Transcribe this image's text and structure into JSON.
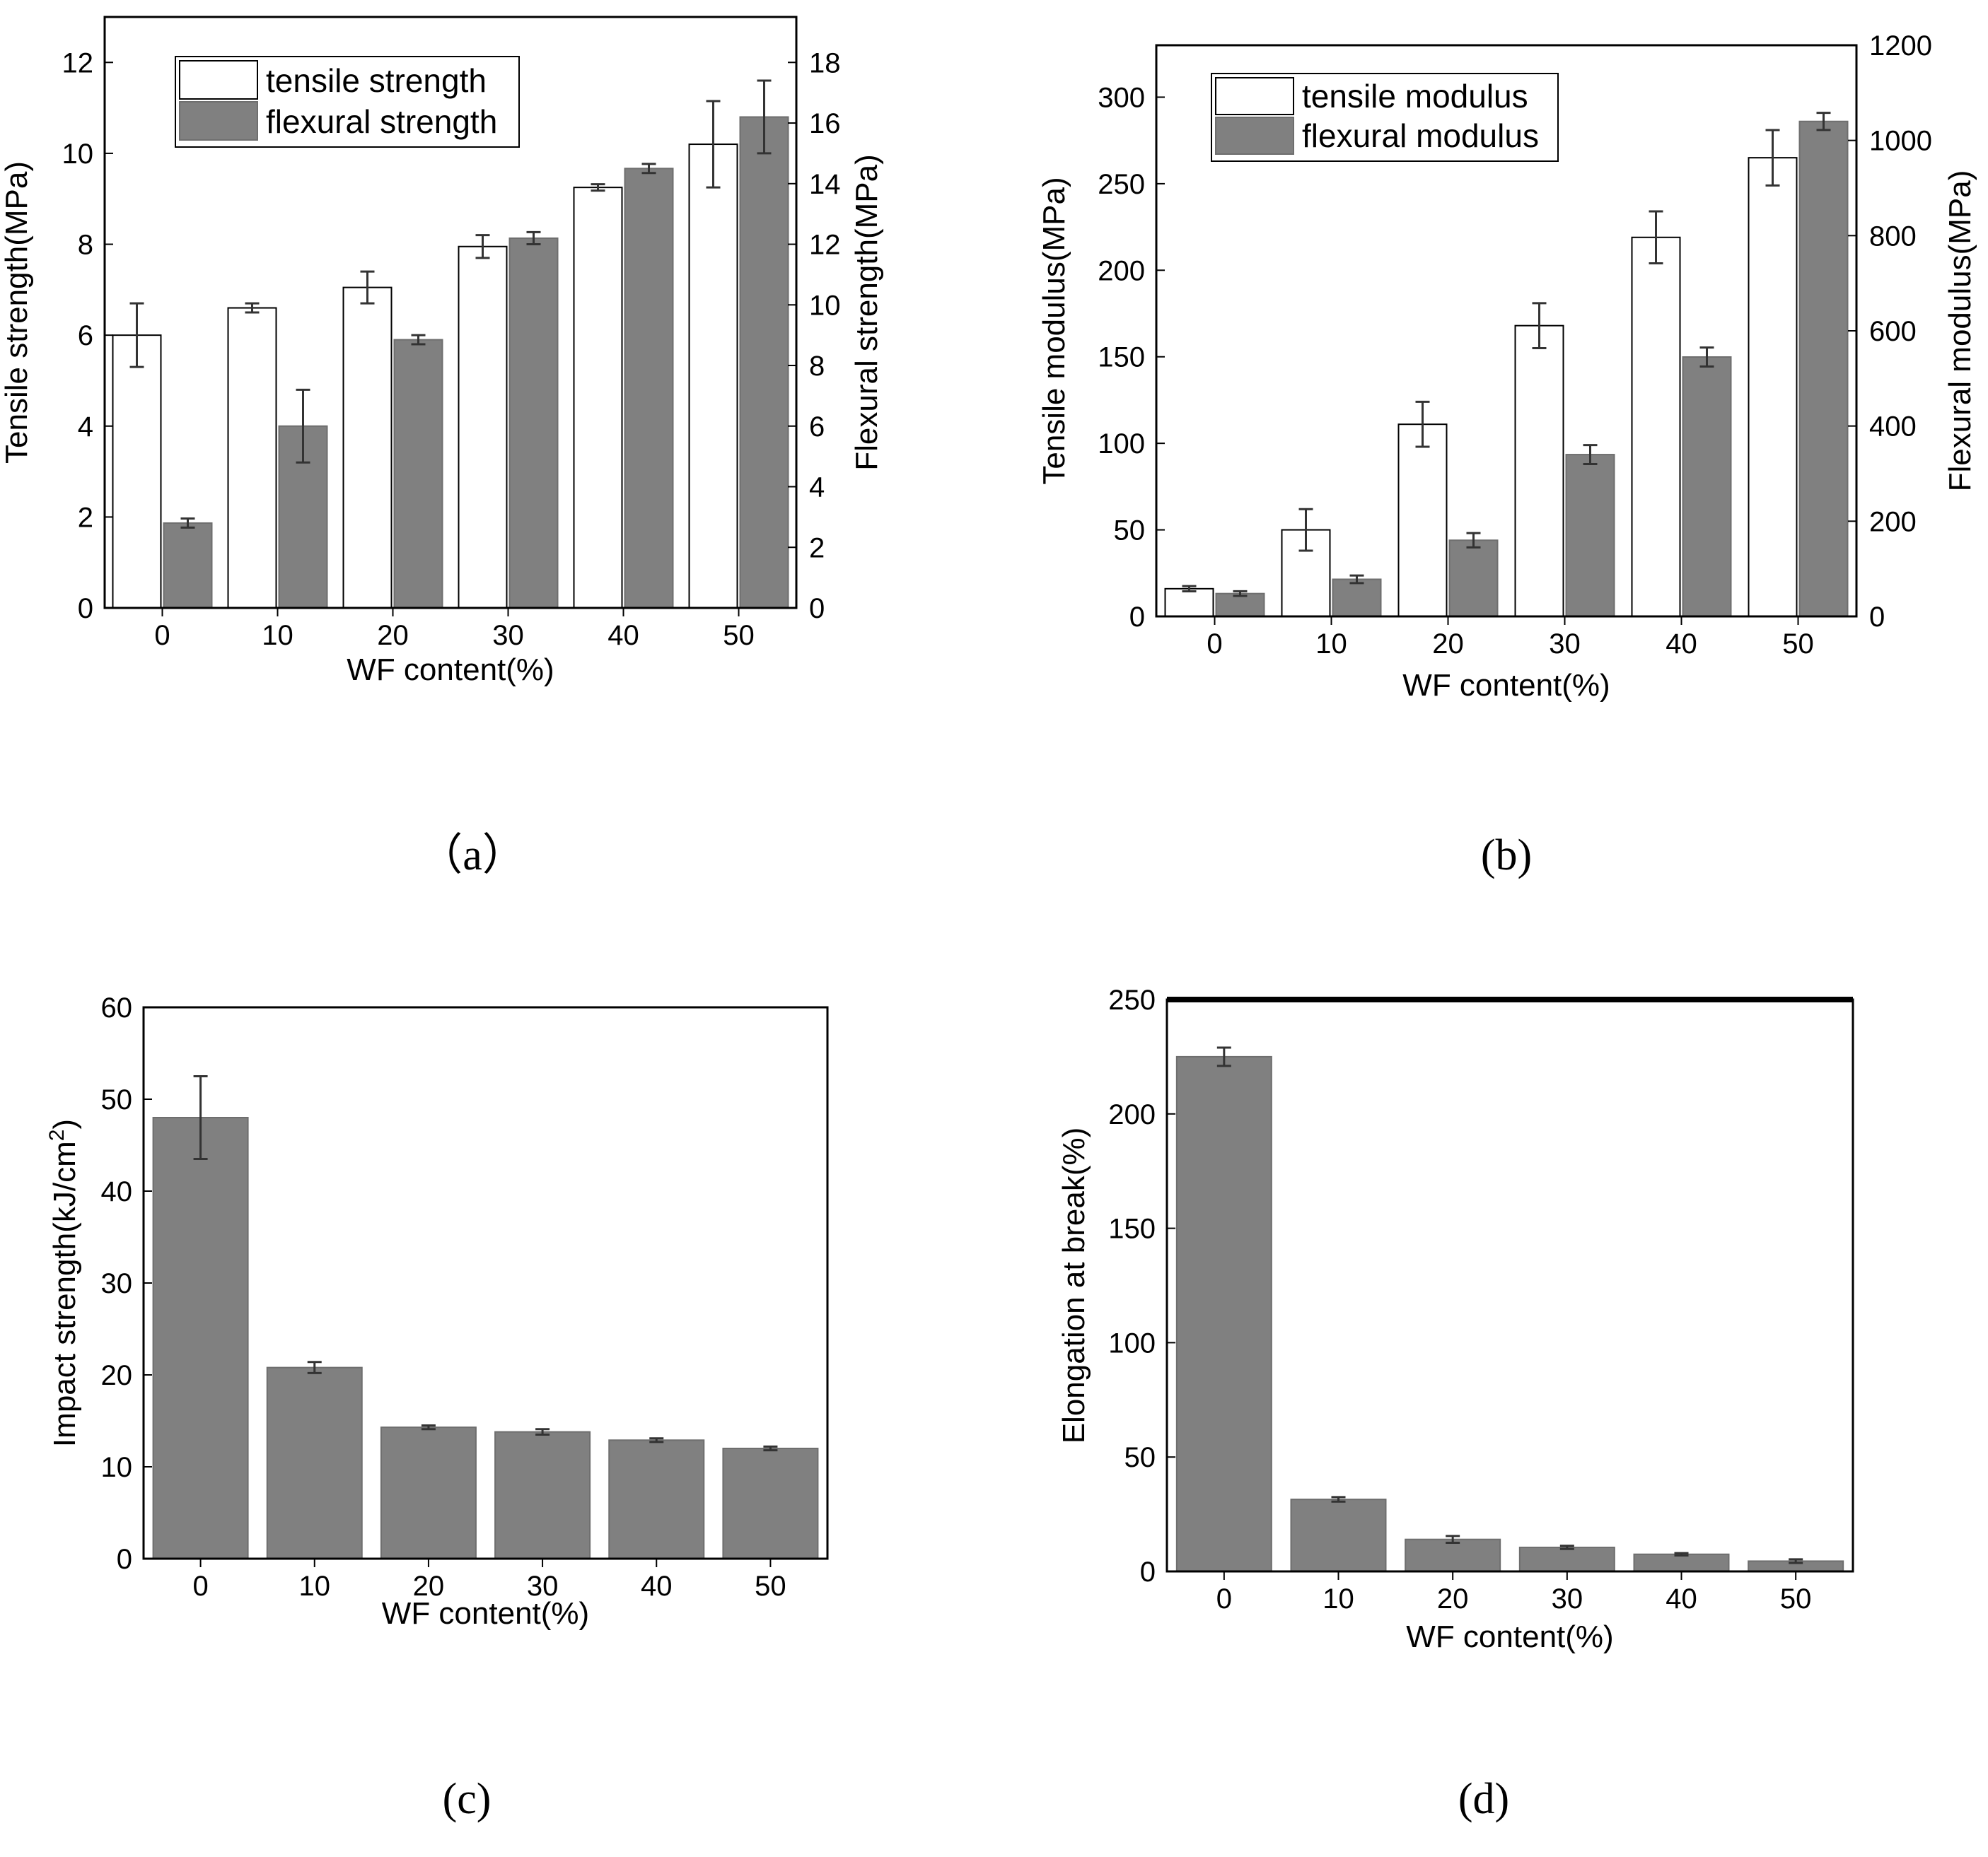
{
  "colors": {
    "open_bar": "#ffffff",
    "filled_bar": "#808080",
    "axis": "#000000",
    "error": "#333333"
  },
  "chart_data": [
    {
      "id": "a",
      "type": "bar",
      "caption": "（a）",
      "categories": [
        "0",
        "10",
        "20",
        "30",
        "40",
        "50"
      ],
      "xlabel": "WF content(%)",
      "ylabel_left": "Tensile strength(MPa)",
      "ylabel_right": "Flexural strength(MPa)",
      "yleft": {
        "min": 0,
        "max": 13,
        "ticks": [
          0,
          2,
          4,
          6,
          8,
          10,
          12
        ]
      },
      "yright": {
        "min": 0,
        "max": 19.5,
        "ticks": [
          0,
          2,
          4,
          6,
          8,
          10,
          12,
          14,
          16,
          18
        ]
      },
      "series": [
        {
          "name": "tensile strength",
          "axis": "left",
          "style": "open",
          "values": [
            6.0,
            6.6,
            7.05,
            7.95,
            9.25,
            10.2
          ],
          "errors": [
            0.7,
            0.1,
            0.35,
            0.25,
            0.07,
            0.95
          ]
        },
        {
          "name": "flexural strength",
          "axis": "right",
          "style": "filled",
          "values": [
            2.8,
            6.0,
            8.85,
            12.2,
            14.5,
            16.2
          ],
          "errors": [
            0.15,
            1.2,
            0.15,
            0.2,
            0.15,
            1.2
          ]
        }
      ],
      "legend": [
        "tensile strength",
        "flexural strength"
      ],
      "legend_position": "top-left"
    },
    {
      "id": "b",
      "type": "bar",
      "caption": "(b)",
      "categories": [
        "0",
        "10",
        "20",
        "30",
        "40",
        "50"
      ],
      "xlabel": "WF content(%)",
      "ylabel_left": "Tensile modulus(MPa)",
      "ylabel_right": "Flexural modulus(MPa)",
      "yleft": {
        "min": 0,
        "max": 330,
        "ticks": [
          0,
          50,
          100,
          150,
          200,
          250,
          300
        ]
      },
      "yright": {
        "min": 0,
        "max": 1200,
        "ticks": [
          0,
          200,
          400,
          600,
          800,
          1000,
          1200
        ]
      },
      "series": [
        {
          "name": "tensile modulus",
          "axis": "left",
          "style": "open",
          "values": [
            16,
            50,
            111,
            168,
            219,
            265
          ],
          "errors": [
            1.5,
            12,
            13,
            13,
            15,
            16
          ]
        },
        {
          "name": "flexural modulus",
          "axis": "right",
          "style": "filled",
          "values": [
            48,
            78,
            160,
            340,
            545,
            1040
          ],
          "errors": [
            5,
            8,
            15,
            20,
            20,
            18
          ]
        }
      ],
      "legend": [
        "tensile modulus",
        "flexural modulus"
      ],
      "legend_position": "top-left"
    },
    {
      "id": "c",
      "type": "bar",
      "caption": "(c)",
      "categories": [
        "0",
        "10",
        "20",
        "30",
        "40",
        "50"
      ],
      "xlabel": "WF content(%)",
      "ylabel": "Impact strength(kJ/cm",
      "ylabel_sup": "2",
      "ylabel_close": ")",
      "yleft": {
        "min": 0,
        "max": 60,
        "ticks": [
          0,
          10,
          20,
          30,
          40,
          50,
          60
        ]
      },
      "series": [
        {
          "name": "impact strength",
          "axis": "left",
          "style": "filled",
          "values": [
            48,
            20.8,
            14.3,
            13.8,
            12.9,
            12.0
          ],
          "errors": [
            4.5,
            0.6,
            0.2,
            0.3,
            0.2,
            0.2
          ]
        }
      ]
    },
    {
      "id": "d",
      "type": "bar",
      "caption": "(d)",
      "categories": [
        "0",
        "10",
        "20",
        "30",
        "40",
        "50"
      ],
      "xlabel": "WF content(%)",
      "ylabel": "Elongation at break(%)",
      "yleft": {
        "min": 0,
        "max": 250,
        "ticks": [
          0,
          50,
          100,
          150,
          200,
          250
        ]
      },
      "series": [
        {
          "name": "elongation at break",
          "axis": "left",
          "style": "filled",
          "values": [
            225,
            31.5,
            14,
            10.5,
            7.5,
            4.5
          ],
          "errors": [
            4,
            1,
            1.5,
            0.7,
            0.5,
            0.8
          ]
        }
      ]
    }
  ]
}
